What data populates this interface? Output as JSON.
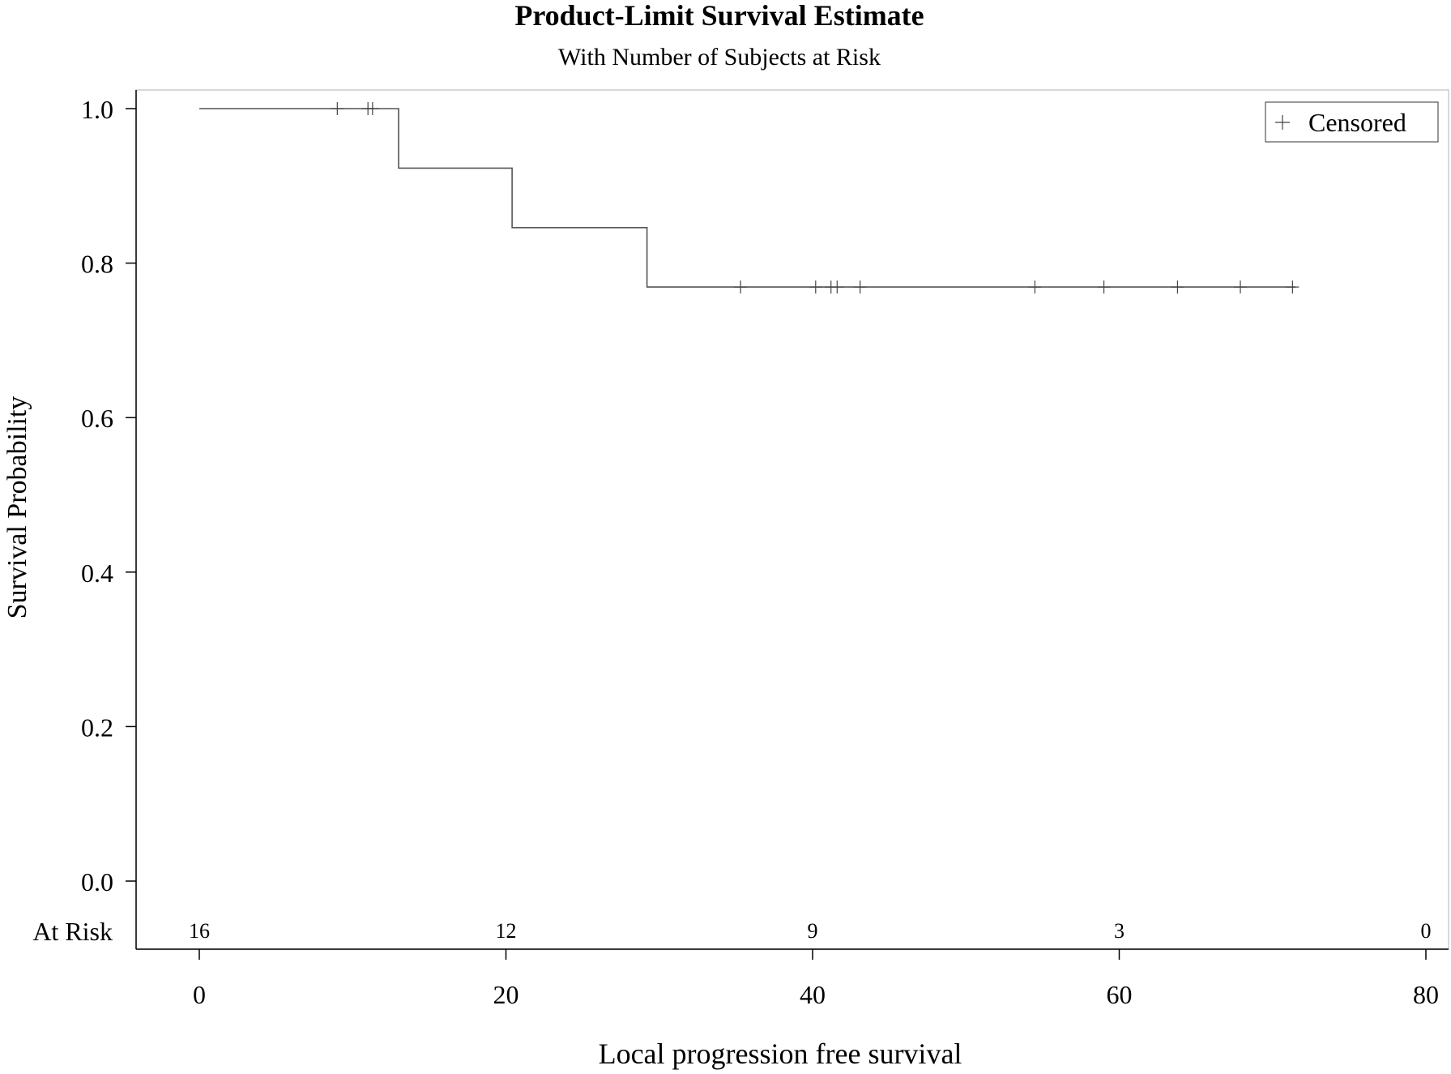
{
  "chart_data": {
    "type": "line",
    "title": "Product-Limit Survival Estimate",
    "subtitle": "With Number of Subjects at Risk",
    "xlabel": "Local progression free survival",
    "ylabel": "Survival Probability",
    "xlim": [
      0,
      80
    ],
    "ylim": [
      0,
      1
    ],
    "xticks": [
      0,
      20,
      40,
      60,
      80
    ],
    "xtick_labels": [
      "0",
      "20",
      "40",
      "60",
      "80"
    ],
    "yticks": [
      0,
      0.2,
      0.4,
      0.6,
      0.8,
      1.0
    ],
    "ytick_labels": [
      "0.0",
      "0.2",
      "0.4",
      "0.6",
      "0.8",
      "1.0"
    ],
    "grid": false,
    "legend": {
      "position": "top-right",
      "label": "Censored"
    },
    "series": [
      {
        "step_x": [
          0,
          13,
          13,
          20.4,
          20.4,
          29.2,
          29.2,
          71.5
        ],
        "step_y": [
          1.0,
          1.0,
          0.923,
          0.923,
          0.846,
          0.846,
          0.769,
          0.769
        ],
        "censored": [
          {
            "x": 9.0,
            "y": 1.0
          },
          {
            "x": 11.0,
            "y": 1.0
          },
          {
            "x": 11.3,
            "y": 1.0
          },
          {
            "x": 35.3,
            "y": 0.769
          },
          {
            "x": 40.2,
            "y": 0.769
          },
          {
            "x": 41.2,
            "y": 0.769
          },
          {
            "x": 41.6,
            "y": 0.769
          },
          {
            "x": 43.1,
            "y": 0.769
          },
          {
            "x": 54.5,
            "y": 0.769
          },
          {
            "x": 59.0,
            "y": 0.769
          },
          {
            "x": 63.8,
            "y": 0.769
          },
          {
            "x": 67.9,
            "y": 0.769
          },
          {
            "x": 71.3,
            "y": 0.769
          }
        ]
      }
    ],
    "at_risk": {
      "label": "At Risk",
      "x": [
        0,
        20,
        40,
        60,
        80
      ],
      "counts": [
        "16",
        "12",
        "9",
        "3",
        "0"
      ]
    }
  }
}
